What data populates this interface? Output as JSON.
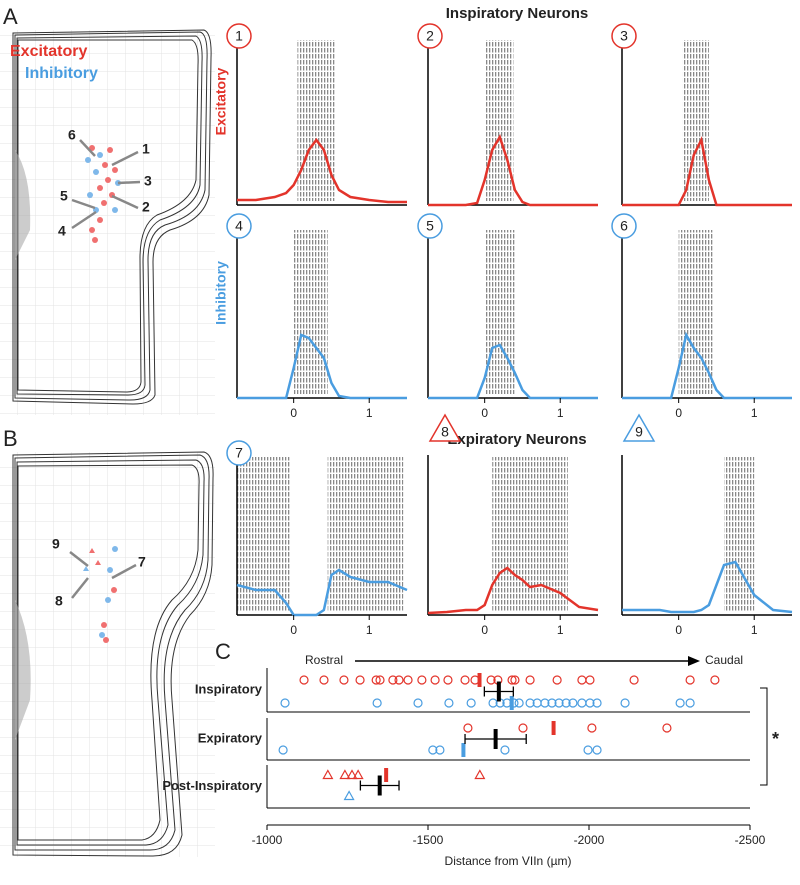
{
  "panel_labels": [
    "A",
    "B",
    "C"
  ],
  "legend": {
    "excitatory": {
      "label": "Excitatory",
      "color": "#e3342b"
    },
    "inhibitory": {
      "label": "Inhibitory",
      "color": "#4a9de0"
    }
  },
  "chart_data": [
    {
      "type": "raster",
      "title": "Inspiratory Neurons",
      "row_labels": [
        "Excitatory",
        "Inhibitory"
      ],
      "xlim": [
        -0.75,
        1.5
      ],
      "xticks": [
        0,
        1
      ],
      "psth_x": [
        -0.75,
        -0.5,
        -0.25,
        -0.1,
        0,
        0.1,
        0.2,
        0.3,
        0.4,
        0.5,
        0.6,
        0.75,
        1,
        1.25,
        1.5
      ],
      "neurons": [
        {
          "label": "1",
          "class": "excitatory",
          "marker": "circle",
          "burst": [
            [
              0.05,
              0.55
            ]
          ],
          "psth": [
            0.05,
            0.05,
            0.08,
            0.12,
            0.2,
            0.35,
            0.55,
            0.65,
            0.55,
            0.3,
            0.15,
            0.08,
            0.05,
            0.03,
            0.03
          ]
        },
        {
          "label": "2",
          "class": "excitatory",
          "marker": "circle",
          "burst": [
            [
              0,
              0.38
            ]
          ],
          "psth": [
            0,
            0,
            0,
            0.02,
            0.25,
            0.55,
            0.68,
            0.45,
            0.15,
            0.03,
            0,
            0,
            0,
            0,
            0
          ]
        },
        {
          "label": "3",
          "class": "excitatory",
          "marker": "circle",
          "burst": [
            [
              0.05,
              0.4
            ]
          ],
          "psth": [
            0,
            0,
            0,
            0,
            0,
            0.15,
            0.5,
            0.65,
            0.25,
            0,
            0,
            0,
            0,
            0,
            0
          ]
        },
        {
          "label": "4",
          "class": "inhibitory",
          "marker": "circle",
          "burst": [
            [
              0,
              0.45
            ]
          ],
          "psth": [
            0,
            0,
            0,
            0,
            0.3,
            0.63,
            0.6,
            0.5,
            0.4,
            0.15,
            0.02,
            0,
            0,
            0,
            0
          ]
        },
        {
          "label": "5",
          "class": "inhibitory",
          "marker": "circle",
          "burst": [
            [
              0,
              0.4
            ]
          ],
          "psth": [
            0,
            0,
            0,
            0,
            0.2,
            0.5,
            0.53,
            0.4,
            0.25,
            0.08,
            0,
            0,
            0,
            0,
            0
          ]
        },
        {
          "label": "6",
          "class": "inhibitory",
          "marker": "circle",
          "burst": [
            [
              0,
              0.45
            ]
          ],
          "psth": [
            0,
            0,
            0,
            0,
            0.3,
            0.63,
            0.5,
            0.4,
            0.25,
            0.08,
            0,
            0,
            0,
            0,
            0
          ]
        }
      ]
    },
    {
      "type": "raster",
      "title": "Expiratory Neurons",
      "xlim": [
        -0.75,
        1.5
      ],
      "xticks": [
        0,
        1
      ],
      "psth_x": [
        -0.75,
        -0.5,
        -0.25,
        -0.1,
        0,
        0.1,
        0.2,
        0.3,
        0.4,
        0.5,
        0.6,
        0.75,
        1,
        1.25,
        1.5
      ],
      "neurons": [
        {
          "label": "7",
          "class": "inhibitory",
          "marker": "circle",
          "burst": [
            [
              -0.75,
              -0.05
            ],
            [
              0.45,
              1.45
            ]
          ],
          "psth": [
            0.3,
            0.25,
            0.25,
            0.12,
            0,
            0,
            0,
            0,
            0.05,
            0.4,
            0.45,
            0.38,
            0.33,
            0.33,
            0.25
          ]
        },
        {
          "label": "8",
          "class": "excitatory",
          "marker": "triangle",
          "burst": [
            [
              0.1,
              1.1
            ]
          ],
          "psth": [
            0.02,
            0.03,
            0.05,
            0.05,
            0.1,
            0.3,
            0.42,
            0.47,
            0.4,
            0.35,
            0.28,
            0.3,
            0.22,
            0.08,
            0.05
          ]
        },
        {
          "label": "9",
          "class": "inhibitory",
          "marker": "triangle",
          "burst": [
            [
              0.6,
              1.0
            ]
          ],
          "psth": [
            0.05,
            0.05,
            0.05,
            0.03,
            0.03,
            0.03,
            0.03,
            0.05,
            0.1,
            0.3,
            0.5,
            0.53,
            0.2,
            0.05,
            0.03
          ]
        }
      ]
    },
    {
      "type": "strip",
      "xlabel": "Distance from VIIn (µm)",
      "xlim": [
        -1000,
        -2500
      ],
      "xticks": [
        -1000,
        -1500,
        -2000,
        -2500
      ],
      "direction": [
        "Rostral",
        "Caudal"
      ],
      "significance": "*",
      "categories": [
        "Inspiratory",
        "Expiratory",
        "Post-Inspiratory"
      ],
      "rows": [
        {
          "marker": "circle",
          "excitatory": [
            -1115,
            -1177,
            -1239,
            -1289,
            -1339,
            -1351,
            -1391,
            -1410,
            -1438,
            -1481,
            -1522,
            -1562,
            -1615,
            -1646,
            -1696,
            -1717,
            -1761,
            -1770,
            -1817,
            -1901,
            -1978,
            -2003,
            -2140,
            -2314,
            -2391
          ],
          "inhibitory": [
            -1056,
            -1342,
            -1469,
            -1565,
            -1634,
            -1702,
            -1724,
            -1745,
            -1767,
            -1783,
            -1817,
            -1839,
            -1863,
            -1885,
            -1907,
            -1929,
            -1950,
            -1978,
            -2003,
            -2025,
            -2112,
            -2283,
            -2314
          ],
          "excitatory_mean": -1660,
          "inhibitory_mean": -1760,
          "mean": -1720,
          "sem": 45
        },
        {
          "marker": "circle",
          "excitatory": [
            -1624,
            -1795,
            -2009,
            -2242
          ],
          "inhibitory": [
            -1050,
            -1515,
            -1537,
            -1739,
            -1997,
            -2025
          ],
          "excitatory_mean": -1890,
          "inhibitory_mean": -1610,
          "mean": -1710,
          "sem": 95
        },
        {
          "marker": "triangle",
          "excitatory": [
            -1189,
            -1242,
            -1264,
            -1283,
            -1661
          ],
          "inhibitory": [
            -1255
          ],
          "excitatory_mean": -1370,
          "mean": -1350,
          "sem": 60
        }
      ]
    }
  ]
}
